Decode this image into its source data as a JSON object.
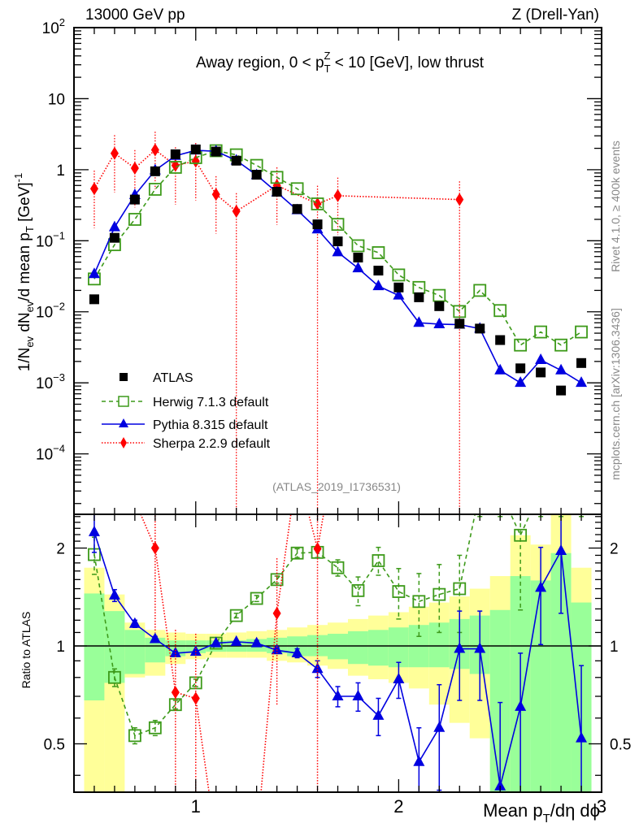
{
  "header": {
    "left": "13000 GeV pp",
    "right": "Z (Drell-Yan)"
  },
  "side_labels": {
    "rivet": "Rivet 4.1.0, ≥ 400k events",
    "mcplots": "mcplots.cern.ch [arXiv:1306.3436]"
  },
  "analysis_tag": "(ATLAS_2019_I1736531)",
  "colors": {
    "atlas": "#000000",
    "herwig": "#3d9a1a",
    "pythia": "#0000e0",
    "sherpa": "#ff0000",
    "band_inner": "#99ff99",
    "band_outer": "#ffff99"
  },
  "chart_data": [
    {
      "type": "scatter",
      "panel": "main",
      "title": "Away region, 0 < p_T^Z < 10 [GeV], low thrust",
      "title_parts": {
        "pre": "Away region, 0 < p",
        "sub": "T",
        "sup": "Z",
        "post": " < 10 [GeV], low thrust"
      },
      "xlabel": "Mean p_T/dη dϕ",
      "ylabel": "1/N_ev dN_ev/d mean p_T [GeV]^-1",
      "yscale": "log",
      "xlim": [
        0.4,
        3.0
      ],
      "ylim": [
        1.41e-05,
        100
      ],
      "yticks": [
        {
          "v": 100,
          "label": "10",
          "sup": "2"
        },
        {
          "v": 10,
          "label": "10",
          "sup": ""
        },
        {
          "v": 1,
          "label": "1",
          "sup": ""
        },
        {
          "v": 0.1,
          "label": "10",
          "sup": "−1"
        },
        {
          "v": 0.01,
          "label": "10",
          "sup": "−2"
        },
        {
          "v": 0.001,
          "label": "10",
          "sup": "−3"
        },
        {
          "v": 0.0001,
          "label": "10",
          "sup": "−4"
        }
      ],
      "x": [
        0.5,
        0.6,
        0.7,
        0.8,
        0.9,
        1.0,
        1.1,
        1.2,
        1.3,
        1.4,
        1.5,
        1.6,
        1.7,
        1.8,
        1.9,
        2.0,
        2.1,
        2.2,
        2.3,
        2.4,
        2.5,
        2.6,
        2.7,
        2.8,
        2.9
      ],
      "legend_position": "lower-left",
      "series": [
        {
          "name": "ATLAS",
          "style": "data",
          "values": [
            0.015,
            0.11,
            0.38,
            0.95,
            1.65,
            1.93,
            1.8,
            1.34,
            0.85,
            0.49,
            0.28,
            0.17,
            0.098,
            0.058,
            0.038,
            0.022,
            0.016,
            0.012,
            0.0068,
            0.0058,
            0.004,
            0.0016,
            0.0014,
            0.00078,
            0.0019
          ]
        },
        {
          "name": "Herwig 7.1.3 default",
          "style": "herwig",
          "values": [
            0.029,
            0.088,
            0.2,
            0.53,
            1.08,
            1.48,
            1.85,
            1.62,
            1.15,
            0.78,
            0.54,
            0.33,
            0.17,
            0.085,
            0.068,
            0.033,
            0.022,
            0.017,
            0.0101,
            0.02,
            0.0104,
            0.0034,
            0.0052,
            0.0034,
            0.0052
          ]
        },
        {
          "name": "Pythia 8.315 default",
          "style": "pythia",
          "values": [
            0.034,
            0.155,
            0.44,
            0.98,
            1.57,
            1.87,
            1.82,
            1.35,
            0.84,
            0.48,
            0.27,
            0.145,
            0.069,
            0.041,
            0.023,
            0.017,
            0.007,
            0.0067,
            0.0066,
            0.0058,
            0.0015,
            0.001,
            0.0021,
            0.0015,
            0.001
          ]
        },
        {
          "name": "Sherpa 2.2.9 default",
          "style": "sherpa",
          "x": [
            0.5,
            0.6,
            0.7,
            0.8,
            0.9,
            1.0,
            1.1,
            1.2,
            1.4,
            1.6,
            1.7,
            2.3
          ],
          "values": [
            0.54,
            1.7,
            1.05,
            1.9,
            1.15,
            1.32,
            0.45,
            0.26,
            0.6,
            0.33,
            0.43,
            0.38
          ]
        }
      ]
    },
    {
      "type": "line",
      "panel": "ratio",
      "ylabel": "Ratio to ATLAS",
      "yscale": "log",
      "ylim": [
        0.355,
        2.54
      ],
      "yticks": [
        {
          "v": 2,
          "label": "2"
        },
        {
          "v": 1,
          "label": "1"
        },
        {
          "v": 0.5,
          "label": "0.5"
        }
      ],
      "xticks": [
        {
          "v": 1,
          "label": "1"
        },
        {
          "v": 2,
          "label": "2"
        },
        {
          "v": 3,
          "label": "3"
        }
      ],
      "x": [
        0.5,
        0.6,
        0.7,
        0.8,
        0.9,
        1.0,
        1.1,
        1.2,
        1.3,
        1.4,
        1.5,
        1.6,
        1.7,
        1.8,
        1.9,
        2.0,
        2.1,
        2.2,
        2.3,
        2.4,
        2.5,
        2.6,
        2.7,
        2.8,
        2.9
      ],
      "band_inner": [
        [
          0.68,
          1.45
        ],
        [
          0.77,
          1.28
        ],
        [
          0.82,
          1.12
        ],
        [
          0.89,
          1.06
        ],
        [
          0.93,
          1.04
        ],
        [
          0.95,
          1.04
        ],
        [
          0.96,
          1.04
        ],
        [
          0.96,
          1.04
        ],
        [
          0.96,
          1.05
        ],
        [
          0.95,
          1.06
        ],
        [
          0.93,
          1.07
        ],
        [
          0.93,
          1.08
        ],
        [
          0.91,
          1.09
        ],
        [
          0.88,
          1.11
        ],
        [
          0.87,
          1.12
        ],
        [
          0.86,
          1.14
        ],
        [
          0.86,
          1.16
        ],
        [
          0.86,
          1.18
        ],
        [
          0.85,
          1.21
        ],
        [
          0.82,
          1.24
        ],
        [
          0.34,
          1.29
        ],
        [
          0.34,
          1.64
        ],
        [
          0.34,
          1.59
        ],
        [
          0.34,
          1.93
        ],
        [
          0.34,
          1.36
        ]
      ],
      "band_outer": [
        [
          0.34,
          1.74
        ],
        [
          0.34,
          1.44
        ],
        [
          0.8,
          1.18
        ],
        [
          0.81,
          1.12
        ],
        [
          0.88,
          1.1
        ],
        [
          0.91,
          1.09
        ],
        [
          0.92,
          1.09
        ],
        [
          0.92,
          1.1
        ],
        [
          0.92,
          1.11
        ],
        [
          0.9,
          1.12
        ],
        [
          0.89,
          1.14
        ],
        [
          0.87,
          1.16
        ],
        [
          0.85,
          1.18
        ],
        [
          0.81,
          1.21
        ],
        [
          0.79,
          1.24
        ],
        [
          0.77,
          1.27
        ],
        [
          0.74,
          1.32
        ],
        [
          0.66,
          1.36
        ],
        [
          0.58,
          1.42
        ],
        [
          0.52,
          1.5
        ],
        [
          0.4,
          1.64
        ],
        [
          0.34,
          2.19
        ],
        [
          0.52,
          2.05
        ],
        [
          0.34,
          2.54
        ],
        [
          0.34,
          1.74
        ]
      ],
      "series": [
        {
          "name": "Herwig 7.1.3 default",
          "style": "herwig",
          "values": [
            1.91,
            0.8,
            0.53,
            0.56,
            0.66,
            0.77,
            1.02,
            1.24,
            1.4,
            1.6,
            1.93,
            1.94,
            1.74,
            1.48,
            1.83,
            1.47,
            1.37,
            1.44,
            1.5,
            3.0,
            3.0,
            2.19,
            3.0,
            3.0,
            3.0
          ],
          "err": [
            0.25,
            0.05,
            0.03,
            0.03,
            0.02,
            0.02,
            0.01,
            0.02,
            0.03,
            0.04,
            0.06,
            0.07,
            0.1,
            0.15,
            0.18,
            0.26,
            0.3,
            0.34,
            0.4,
            0.5,
            0.5,
            0.9,
            0.5,
            0.5,
            0.5
          ]
        },
        {
          "name": "Pythia 8.315 default",
          "style": "pythia",
          "values": [
            2.24,
            1.43,
            1.17,
            1.05,
            0.95,
            0.96,
            1.02,
            1.03,
            1.02,
            0.97,
            0.95,
            0.85,
            0.7,
            0.7,
            0.61,
            0.79,
            0.44,
            0.56,
            0.98,
            0.98,
            0.37,
            0.65,
            1.51,
            1.96,
            0.52
          ],
          "err": [
            0.3,
            0.06,
            0.03,
            0.02,
            0.01,
            0.01,
            0.01,
            0.01,
            0.02,
            0.02,
            0.03,
            0.05,
            0.05,
            0.07,
            0.08,
            0.1,
            0.12,
            0.2,
            0.3,
            0.3,
            0.3,
            0.3,
            0.5,
            0.7,
            0.35
          ]
        },
        {
          "name": "Sherpa 2.2.9 default",
          "style": "sherpa",
          "values": [
            30,
            14,
            2.8,
            2.0,
            0.72,
            0.69,
            0.25,
            0.2,
            0.25,
            1.26,
            3.5,
            1.99,
            4.5
          ],
          "x": [
            0.5,
            0.6,
            0.7,
            0.8,
            0.9,
            1.0,
            1.1,
            1.2,
            1.3,
            1.4,
            1.5,
            1.6,
            1.7
          ],
          "err": [
            0,
            0,
            0,
            0.9,
            0.4,
            0.4,
            0,
            0,
            0,
            0.6,
            0,
            1.7,
            0
          ]
        }
      ]
    }
  ]
}
